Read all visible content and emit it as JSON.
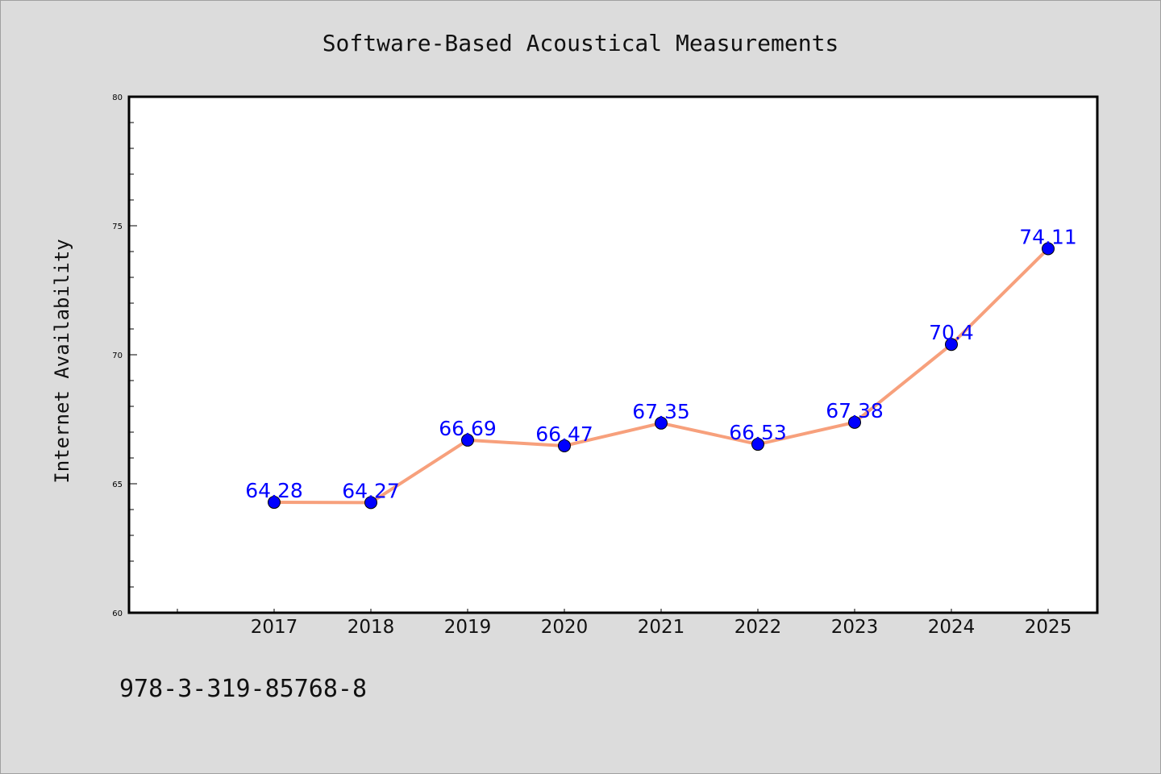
{
  "chart_data": {
    "type": "line",
    "title": "Software-Based Acoustical Measurements",
    "xlabel": "",
    "ylabel": "Internet Availability",
    "categories": [
      "2017",
      "2018",
      "2019",
      "2020",
      "2021",
      "2022",
      "2023",
      "2024",
      "2025"
    ],
    "series": [
      {
        "values": [
          64.28,
          64.27,
          66.69,
          66.47,
          67.35,
          66.53,
          67.38,
          70.4,
          74.11
        ],
        "data_labels": [
          "64.28",
          "64.27",
          "66.69",
          "66.47",
          "67.35",
          "66.53",
          "67.38",
          "70.4",
          "74.11"
        ],
        "line_color": "#f7a07c",
        "marker_color": "#0000ff"
      }
    ],
    "ylim": [
      60,
      80
    ],
    "yticks": [
      "60",
      "65",
      "70",
      "75",
      "80"
    ],
    "grid": false,
    "legend": "none"
  },
  "footer": {
    "isbn": "978-3-319-85768-8"
  },
  "colors": {
    "background": "#dcdcdc",
    "plot_background": "#ffffff"
  }
}
